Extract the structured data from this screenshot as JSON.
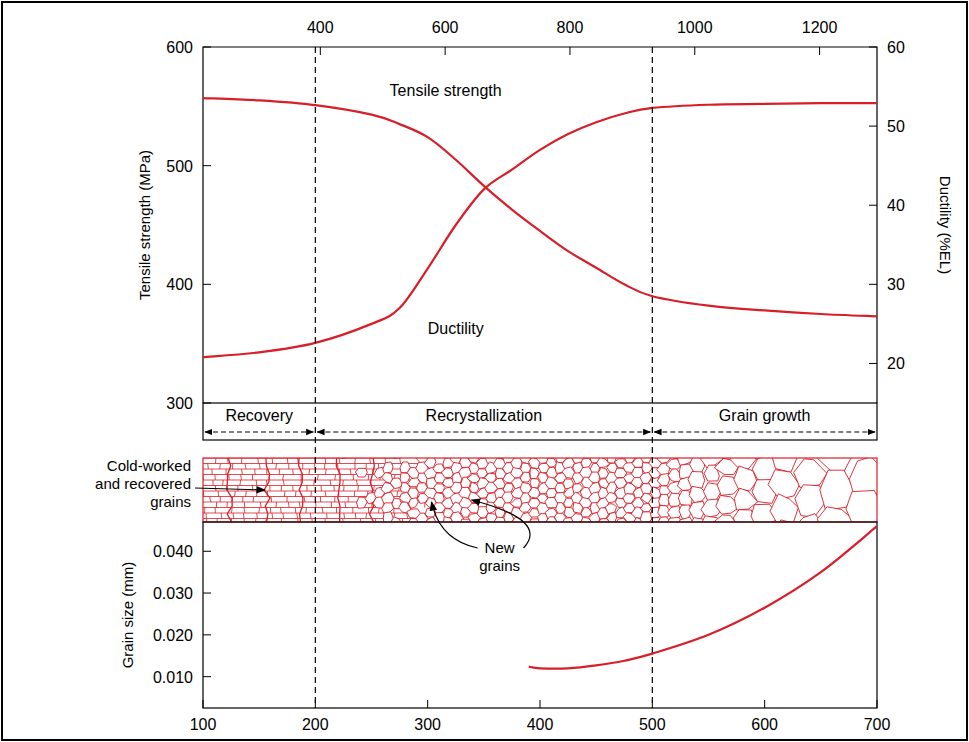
{
  "chart_data": [
    {
      "type": "line",
      "xlim": [
        100,
        700
      ],
      "x2lim": [
        212,
        1292
      ],
      "x2ticks": [
        400,
        600,
        800,
        1000,
        1200
      ],
      "ylim": [
        300,
        600
      ],
      "yticks": [
        300,
        400,
        500,
        600
      ],
      "y_label": "Tensile strength (MPa)",
      "y2lim": [
        15,
        60
      ],
      "y2ticks": [
        20,
        30,
        40,
        50,
        60
      ],
      "y2_label": "Ductility (%EL)",
      "x": [
        100,
        150,
        200,
        250,
        275,
        300,
        325,
        350,
        375,
        400,
        425,
        450,
        475,
        500,
        550,
        600,
        650,
        700
      ],
      "series": [
        {
          "name": "Tensile strength",
          "color": "#d81e28",
          "values": [
            557,
            555,
            551,
            543,
            535,
            524,
            505,
            483,
            463,
            445,
            428,
            414,
            400,
            390,
            382,
            378,
            375,
            373
          ]
        },
        {
          "name": "Ductility",
          "color": "#d81e28",
          "axis": "y2",
          "values": [
            20.8,
            21.4,
            22.6,
            25,
            27,
            32,
            37.5,
            42,
            44.5,
            47,
            49,
            50.5,
            51.6,
            52.3,
            52.7,
            52.8,
            52.9,
            52.9
          ]
        }
      ],
      "regions": [
        {
          "label": "Recovery",
          "from": 100,
          "to": 200
        },
        {
          "label": "Recrystallization",
          "from": 200,
          "to": 500
        },
        {
          "label": "Grain growth",
          "from": 500,
          "to": 700
        }
      ]
    },
    {
      "type": "line",
      "xlim": [
        100,
        700
      ],
      "xticks": [
        100,
        200,
        300,
        400,
        500,
        600,
        700
      ],
      "ylim": [
        0.0025,
        0.047
      ],
      "yticks": [
        {
          "value": 0.01,
          "label": "0.010"
        },
        {
          "value": 0.02,
          "label": "0.020"
        },
        {
          "value": 0.03,
          "label": "0.030"
        },
        {
          "value": 0.04,
          "label": "0.040"
        }
      ],
      "y_label": "Grain size (mm)",
      "color": "#d81e28",
      "x": [
        390,
        400,
        425,
        450,
        475,
        500,
        550,
        600,
        650,
        700
      ],
      "values": [
        0.0124,
        0.012,
        0.012,
        0.0127,
        0.0138,
        0.0155,
        0.02,
        0.0265,
        0.035,
        0.046
      ],
      "annotations": [
        "Cold-worked and recovered grains",
        "New grains"
      ]
    }
  ]
}
